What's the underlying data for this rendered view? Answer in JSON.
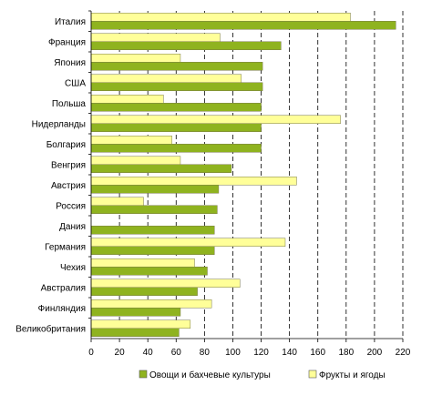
{
  "chart_data": {
    "type": "bar",
    "orientation": "horizontal",
    "categories": [
      "Италия",
      "Франция",
      "Япония",
      "США",
      "Польша",
      "Нидерланды",
      "Болгария",
      "Венгрия",
      "Австрия",
      "Россия",
      "Дания",
      "Германия",
      "Чехия",
      "Австралия",
      "Финляндия",
      "Великобритания"
    ],
    "series": [
      {
        "name": "Овощи и бахчевые культуры",
        "color": "#8fb31f",
        "values": [
          215,
          134,
          121,
          121,
          120,
          120,
          120,
          99,
          90,
          89,
          87,
          87,
          82,
          75,
          63,
          62
        ]
      },
      {
        "name": "Фрукты и ягоды",
        "color": "#ffff99",
        "values": [
          183,
          91,
          63,
          106,
          51,
          176,
          57,
          63,
          145,
          37,
          0,
          137,
          73,
          105,
          85,
          70
        ]
      }
    ],
    "xlim": [
      0,
      220
    ],
    "xticks": [
      0,
      20,
      40,
      60,
      80,
      100,
      120,
      140,
      160,
      180,
      200,
      220
    ],
    "grid": "vertical dashed",
    "legend": "bottom"
  }
}
